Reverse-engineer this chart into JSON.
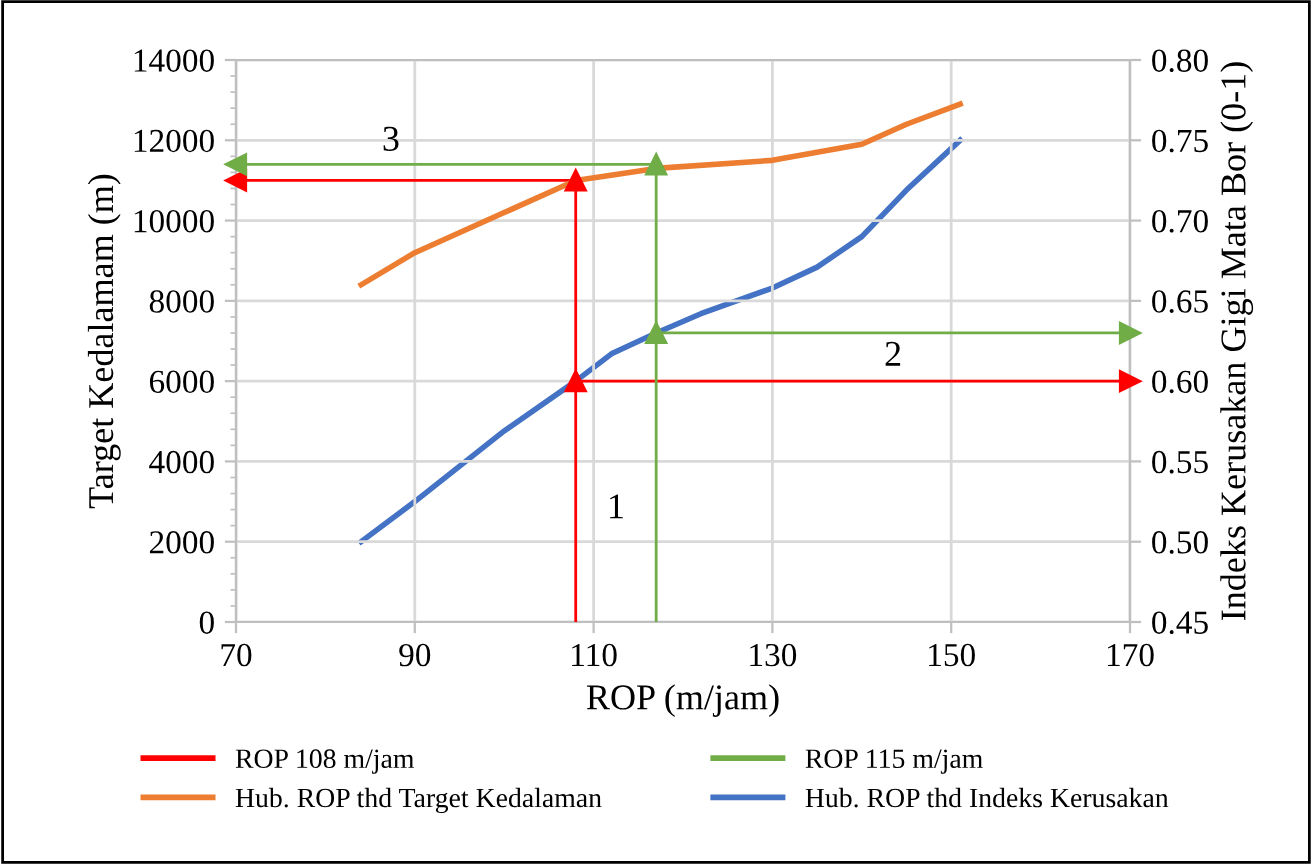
{
  "chart_data": {
    "type": "line",
    "xlabel": "ROP (m/jam)",
    "ylabel": "Target Kedalamam (m)",
    "y2label": "Indeks Kerusakan Gigi Mata Bor (0-1)",
    "xlim": [
      70,
      170
    ],
    "xticks": [
      70,
      90,
      110,
      130,
      150,
      170
    ],
    "ylim": [
      0,
      14000
    ],
    "yticks": [
      0,
      2000,
      4000,
      6000,
      8000,
      10000,
      12000,
      14000
    ],
    "y2lim": [
      0.45,
      0.8
    ],
    "y2ticks": [
      {
        "value": 0.45,
        "label": "0.45"
      },
      {
        "value": 0.5,
        "label": "0.50"
      },
      {
        "value": 0.55,
        "label": "0.55"
      },
      {
        "value": 0.6,
        "label": "0.60"
      },
      {
        "value": 0.65,
        "label": "0.65"
      },
      {
        "value": 0.7,
        "label": "0.70"
      },
      {
        "value": 0.75,
        "label": "0.75"
      },
      {
        "value": 0.8,
        "label": "0.80"
      }
    ],
    "grid": true,
    "legend": "bottom",
    "line_style": "solid",
    "marker": "none",
    "series": [
      {
        "name": "ROP 108 m/jam",
        "color": "#ff0000",
        "marker": "triangle",
        "x": [
          70,
          108,
          108,
          108,
          170
        ],
        "values": [
          11000,
          11000,
          0,
          6000,
          6000
        ]
      },
      {
        "name": "ROP 115 m/jam",
        "color": "#70ad47",
        "marker": "triangle",
        "x": [
          70,
          117,
          117,
          117,
          170
        ],
        "values": [
          11400,
          11400,
          0,
          7200,
          7200
        ]
      },
      {
        "name": "Hub. ROP thd Target Kedalaman",
        "color": "#ed7d31",
        "x": [
          84,
          90,
          100,
          108,
          117,
          130,
          140,
          145,
          151
        ],
        "values": [
          8400,
          9200,
          10200,
          11000,
          11300,
          11500,
          11900,
          12400,
          12900
        ]
      },
      {
        "name": "Hub. ROP thd Indeks Kerusakan",
        "color": "#4472c4",
        "axis": "y2",
        "x": [
          84,
          90,
          100,
          108,
          112,
          117,
          122,
          130,
          135,
          140,
          145,
          151
        ],
        "values": [
          0.5,
          0.525,
          0.569,
          0.6,
          0.617,
          0.63,
          0.642,
          0.658,
          0.671,
          0.69,
          0.719,
          0.75
        ]
      }
    ],
    "annotations": [
      "1",
      "2",
      "3"
    ]
  }
}
